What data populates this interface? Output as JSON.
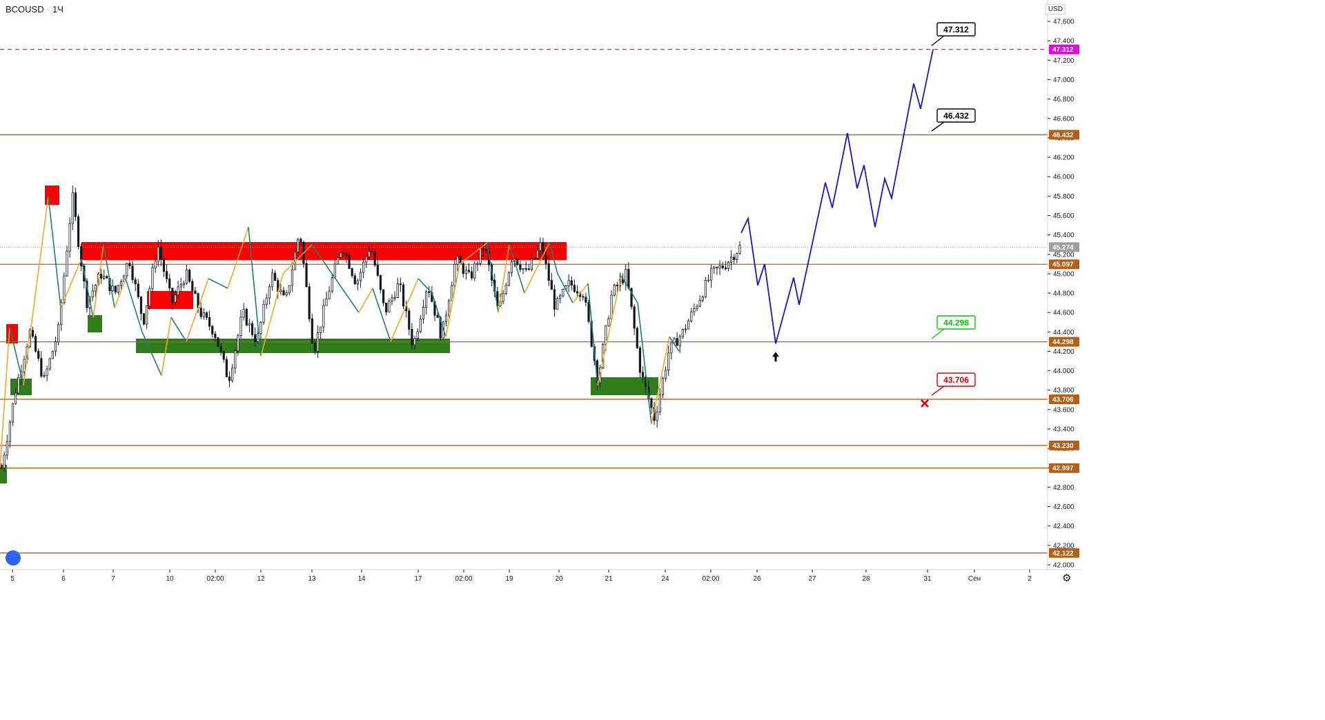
{
  "header": {
    "symbol": "BCOUSD",
    "interval": "1Ч"
  },
  "axis": {
    "currency": "USD"
  },
  "chart_data": {
    "type": "candlestick",
    "y_ticks": [
      "47.600",
      "47.400",
      "47.200",
      "47.000",
      "46.800",
      "46.600",
      "46.400",
      "46.200",
      "46.000",
      "45.800",
      "45.600",
      "45.400",
      "45.200",
      "45.000",
      "44.800",
      "44.600",
      "44.400",
      "44.200",
      "44.000",
      "43.800",
      "43.600",
      "43.400",
      "43.200",
      "43.000",
      "42.800",
      "42.600",
      "42.400",
      "42.200",
      "42.000"
    ],
    "x_ticks": [
      "5",
      "6",
      "7",
      "10",
      "02:00",
      "12",
      "13",
      "14",
      "17",
      "02:00",
      "19",
      "20",
      "21",
      "24",
      "02:00",
      "26",
      "27",
      "28",
      "31",
      "Сен",
      "2"
    ],
    "ylim": [
      41.95,
      47.75
    ],
    "current_price": "45.274",
    "levels": [
      {
        "value": 47.312,
        "label": "47.312",
        "style": "dashed",
        "color": "#e600e6"
      },
      {
        "value": 46.432,
        "label": "46.432",
        "style": "solid",
        "color": "#b65f14"
      },
      {
        "value": 45.097,
        "label": "45.097",
        "style": "solid",
        "color": "#b65f14"
      },
      {
        "value": 44.298,
        "label": "44.298",
        "style": "solid",
        "color": "#b65f14"
      },
      {
        "value": 43.706,
        "label": "43.706",
        "style": "solid",
        "color": "#b65f14"
      },
      {
        "value": 43.23,
        "label": "43.230",
        "style": "solid",
        "color": "#b65f14"
      },
      {
        "value": 42.997,
        "label": "42.997",
        "style": "solid",
        "color": "#b65f14"
      },
      {
        "value": 42.122,
        "label": "42.122",
        "style": "solid",
        "color": "#b65f14"
      }
    ],
    "callouts": [
      {
        "label": "47.312",
        "color": "#000000"
      },
      {
        "label": "46.432",
        "color": "#000000"
      },
      {
        "label": "44.298",
        "color": "#00cc00"
      },
      {
        "label": "43.706",
        "color": "#e60000"
      }
    ],
    "colors": {
      "supply_zone": "#ff0000",
      "demand_zone": "#2e7d1a",
      "forecast": "#1414cc",
      "zigzag_up": "#f5a623",
      "zigzag_down": "#1a7f6e",
      "candle": "#131722",
      "target_marker": "#e60000",
      "current_price_tag": "#9e9e9e"
    },
    "supply_zones": [
      {
        "from": "5",
        "top": 44.4,
        "bottom": 44.2
      },
      {
        "from": "6",
        "top": 45.85,
        "bottom": 45.65
      },
      {
        "from": "6",
        "top": 45.28,
        "bottom": 45.1
      },
      {
        "from": "10",
        "top": 44.75,
        "bottom": 44.58
      }
    ],
    "demand_zones": [
      {
        "top": 43.12,
        "bottom": 42.95
      },
      {
        "top": 43.86,
        "bottom": 43.7
      },
      {
        "top": 44.52,
        "bottom": 44.35
      },
      {
        "top": 44.28,
        "bottom": 44.14
      },
      {
        "top": 43.88,
        "bottom": 43.7
      }
    ],
    "forecast_path": [
      45.42,
      45.57,
      44.88,
      45.1,
      44.28,
      44.96,
      44.68,
      45.94,
      45.68,
      46.45,
      45.88,
      46.12,
      45.48,
      45.98,
      45.78,
      46.96,
      46.7,
      47.312
    ],
    "price_path": [
      43.0,
      43.8,
      44.4,
      43.9,
      44.4,
      45.8,
      44.7,
      45.0,
      44.8,
      45.15,
      44.5,
      45.3,
      44.7,
      45.0,
      44.6,
      44.4,
      43.9,
      44.6,
      44.3,
      45.0,
      44.7,
      45.45,
      44.2,
      44.8,
      45.3,
      44.9,
      45.3,
      44.6,
      44.9,
      44.25,
      44.9,
      44.35,
      45.15,
      44.95,
      45.3,
      44.6,
      45.2,
      45.0,
      45.3,
      44.65,
      44.9,
      44.8,
      43.9,
      44.8,
      45.0,
      44.0,
      43.5,
      44.2,
      44.4,
      44.7,
      45.0,
      45.1,
      45.274
    ]
  }
}
